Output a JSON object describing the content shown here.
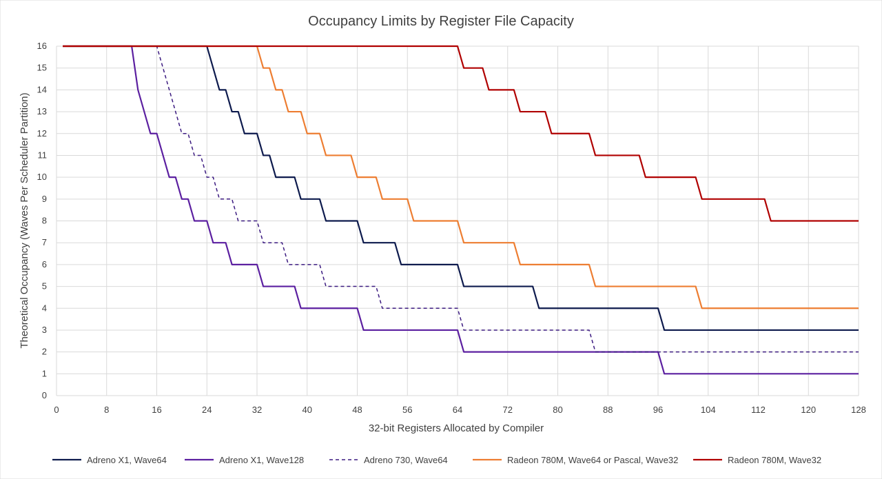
{
  "chart_data": {
    "type": "line",
    "title": "Occupancy Limits by Register File Capacity",
    "xlabel": "32-bit Registers Allocated by Compiler",
    "ylabel": "Theoretical Occupancy (Waves Per Scheduler Partition)",
    "xlim": [
      0,
      128
    ],
    "ylim": [
      0,
      16
    ],
    "xticks": [
      0,
      8,
      16,
      24,
      32,
      40,
      48,
      56,
      64,
      72,
      80,
      88,
      96,
      104,
      112,
      120,
      128
    ],
    "yticks": [
      0,
      1,
      2,
      3,
      4,
      5,
      6,
      7,
      8,
      9,
      10,
      11,
      12,
      13,
      14,
      15,
      16
    ],
    "grid": true,
    "legend_position": "bottom",
    "series": [
      {
        "name": "Adreno X1, Wave64",
        "color": "#0d1a4d",
        "dash": "solid",
        "x": [
          1,
          24,
          26,
          27,
          28,
          29,
          30,
          31,
          32,
          33,
          34,
          35,
          36,
          37,
          38,
          39,
          40,
          41,
          42,
          43,
          48,
          49,
          54,
          55,
          64,
          65,
          76,
          77,
          96,
          97,
          128
        ],
        "y": [
          16,
          16,
          14,
          14,
          13,
          13,
          12,
          12,
          12,
          11,
          11,
          10,
          10,
          10,
          10,
          9,
          9,
          9,
          9,
          8,
          8,
          7,
          7,
          6,
          6,
          5,
          5,
          4,
          4,
          3,
          3
        ]
      },
      {
        "name": "Adreno X1, Wave128",
        "color": "#5b1fa0",
        "dash": "solid",
        "x": [
          1,
          12,
          13,
          15,
          16,
          18,
          19,
          20,
          21,
          22,
          24,
          25,
          27,
          28,
          32,
          33,
          38,
          39,
          48,
          49,
          64,
          65,
          96,
          97,
          128
        ],
        "y": [
          16,
          16,
          14,
          12,
          12,
          10,
          10,
          9,
          9,
          8,
          8,
          7,
          7,
          6,
          6,
          5,
          5,
          4,
          4,
          3,
          3,
          2,
          2,
          1,
          1
        ]
      },
      {
        "name": "Adreno 730, Wave64",
        "color": "#3b1a80",
        "dash": "dashed",
        "x": [
          1,
          16,
          20,
          21,
          22,
          23,
          24,
          25,
          26,
          27,
          28,
          29,
          32,
          33,
          36,
          37,
          42,
          43,
          51,
          52,
          64,
          65,
          85,
          86,
          128
        ],
        "y": [
          16,
          16,
          12,
          12,
          11,
          11,
          10,
          10,
          9,
          9,
          9,
          8,
          8,
          7,
          7,
          6,
          6,
          5,
          5,
          4,
          4,
          3,
          3,
          2,
          2
        ]
      },
      {
        "name": "Radeon 780M, Wave64 or Pascal, Wave32",
        "color": "#ed7d31",
        "dash": "solid",
        "x": [
          1,
          32,
          33,
          34,
          35,
          36,
          37,
          38,
          39,
          40,
          41,
          42,
          43,
          44,
          47,
          48,
          51,
          52,
          56,
          57,
          64,
          65,
          73,
          74,
          85,
          86,
          102,
          103,
          128
        ],
        "y": [
          16,
          16,
          15,
          15,
          14,
          14,
          13,
          13,
          13,
          12,
          12,
          12,
          11,
          11,
          11,
          10,
          10,
          9,
          9,
          8,
          8,
          7,
          7,
          6,
          6,
          5,
          5,
          4,
          4
        ]
      },
      {
        "name": "Radeon 780M, Wave32",
        "color": "#b00000",
        "dash": "solid",
        "x": [
          1,
          64,
          65,
          68,
          69,
          73,
          74,
          78,
          79,
          85,
          86,
          93,
          94,
          102,
          103,
          113,
          114,
          128
        ],
        "y": [
          16,
          16,
          15,
          15,
          14,
          14,
          13,
          13,
          12,
          12,
          11,
          11,
          10,
          10,
          9,
          9,
          8,
          8
        ]
      }
    ]
  }
}
